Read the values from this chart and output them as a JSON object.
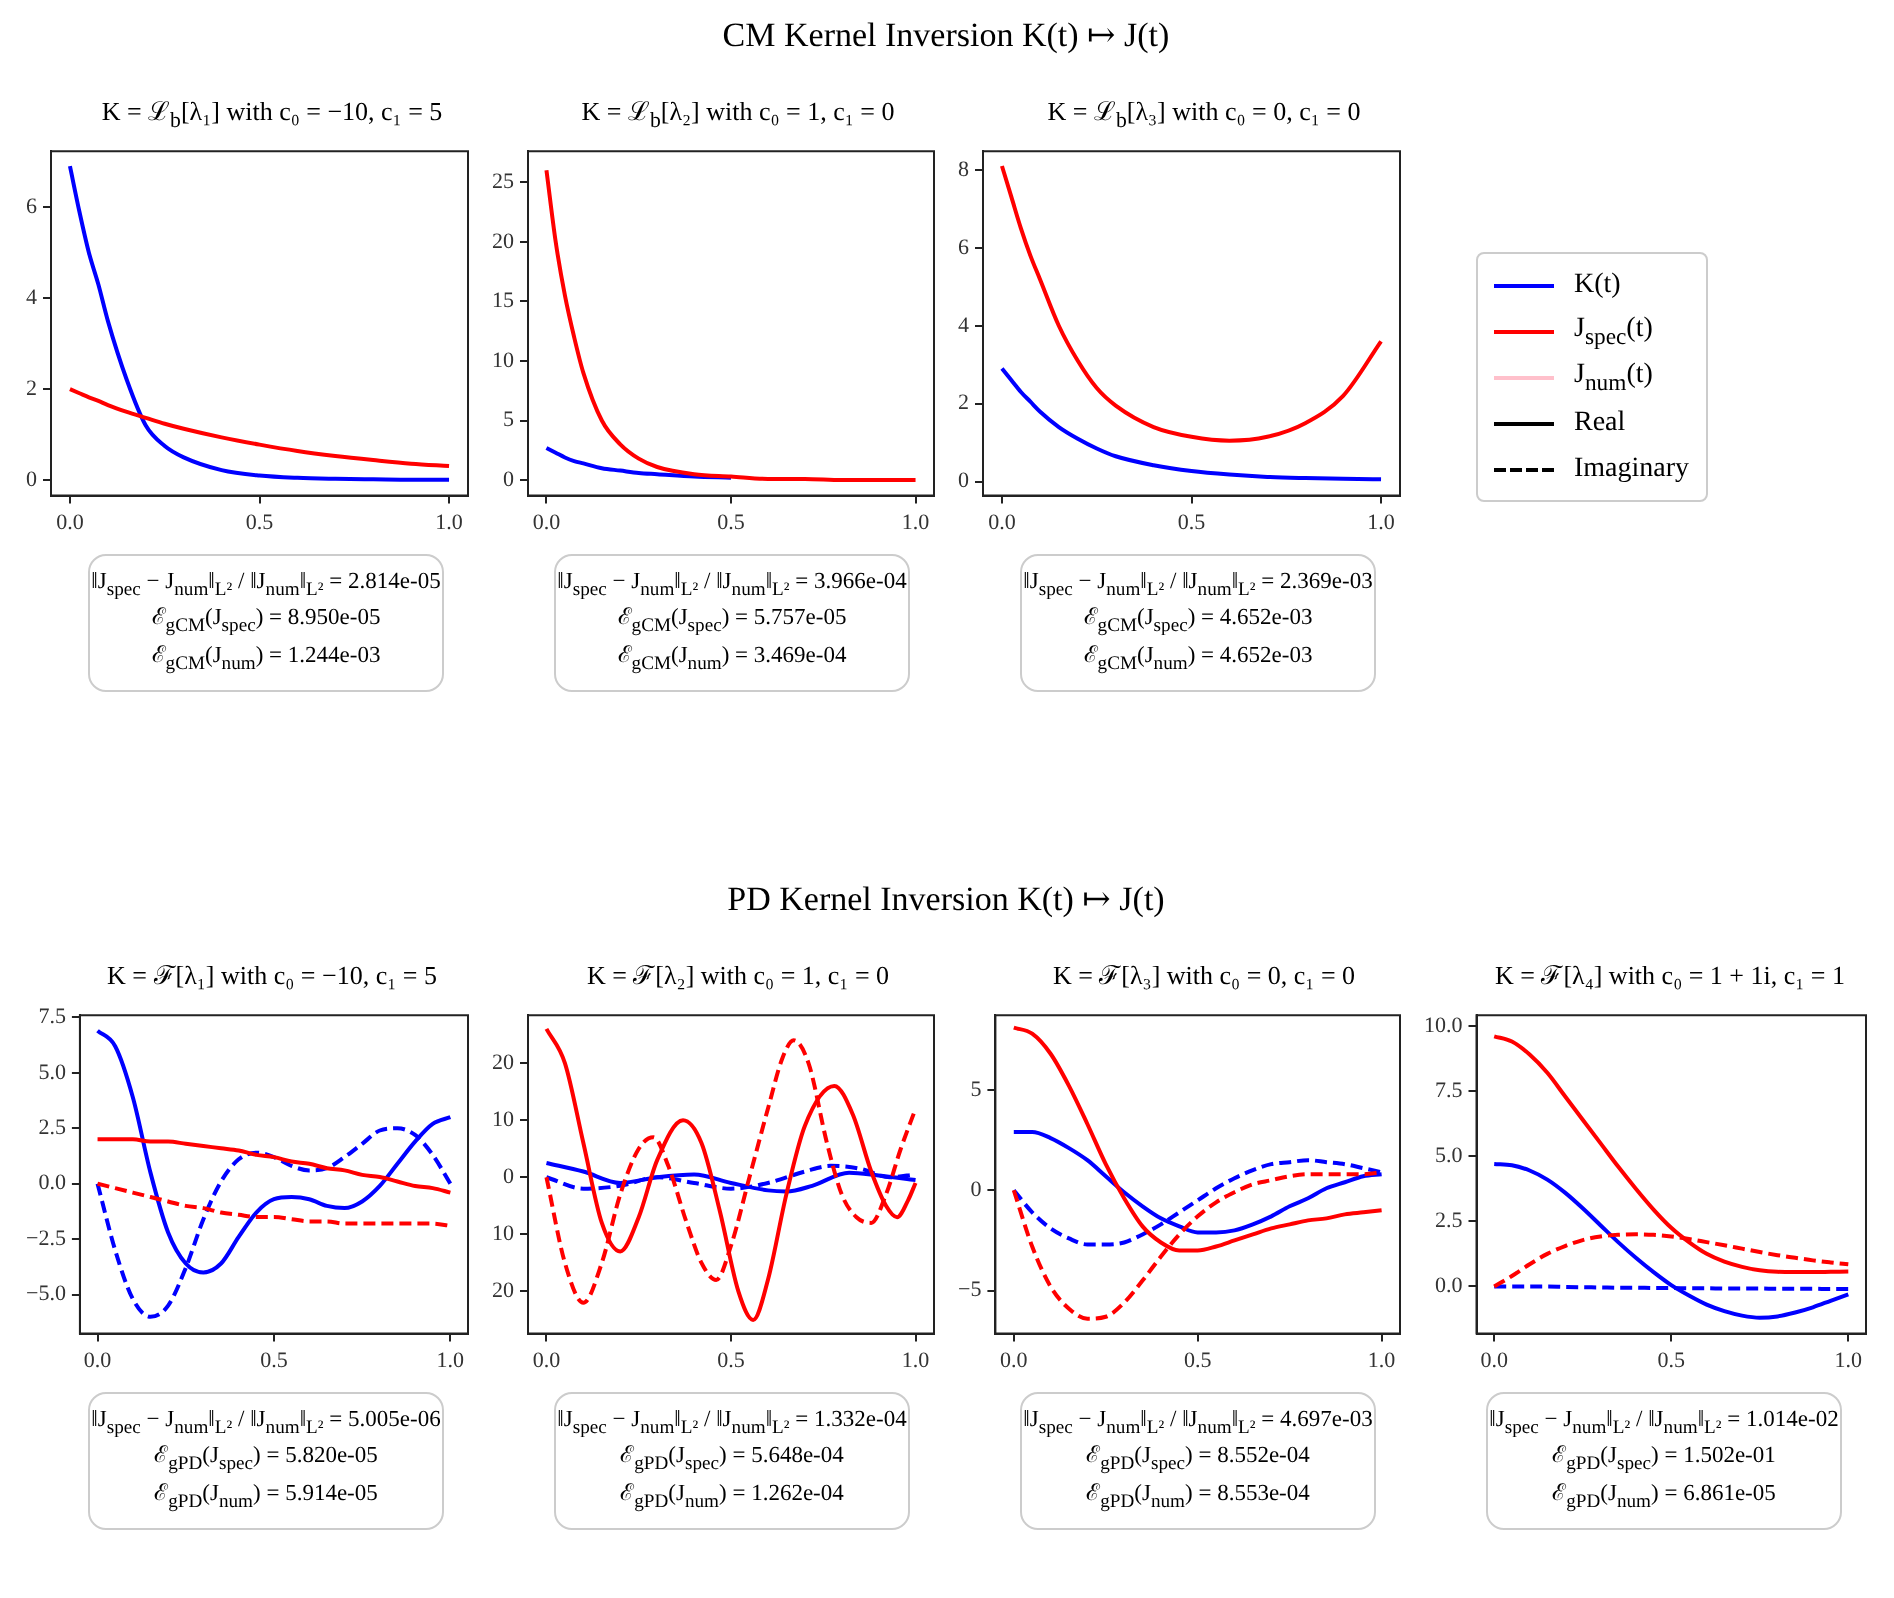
{
  "chart_data": [
    {
      "type": "other",
      "title": "CM Kernel Inversion  K(t) ↦ J(t)"
    },
    {
      "type": "line",
      "title": "K = ℒ$_{b}$[λ₁] with c₀ = −10, c₁ = 5",
      "x": [
        0,
        0.025,
        0.05,
        0.075,
        0.1,
        0.15,
        0.2,
        0.25,
        0.3,
        0.4,
        0.5,
        0.6,
        0.7,
        0.8,
        0.9,
        1
      ],
      "xlim": [
        -0.05,
        1.05
      ],
      "ylim": [
        -0.34,
        7.23
      ],
      "xticks": [
        {
          "value": 0,
          "label": "0.0"
        },
        {
          "value": 0.5,
          "label": "0.5"
        },
        {
          "value": 1,
          "label": "1.0"
        }
      ],
      "yticks": [
        0,
        2,
        4,
        6
      ],
      "series": [
        {
          "color": "#0000ff",
          "values": [
            6.9,
            5.9,
            5.0,
            4.3,
            3.5,
            2.2,
            1.2,
            0.75,
            0.5,
            0.22,
            0.1,
            0.05,
            0.03,
            0.02,
            0.01,
            0.01
          ]
        },
        {
          "color": "#ff0000",
          "values": [
            2.0,
            1.91,
            1.82,
            1.74,
            1.65,
            1.5,
            1.37,
            1.24,
            1.13,
            0.94,
            0.78,
            0.64,
            0.53,
            0.44,
            0.36,
            0.31
          ]
        }
      ],
      "annotations": [
        "‖J$_{spec}$ − J$_{num}$‖$_{L²}$ / ‖J$_{num}$‖$_{L²}$ = 2.814e-05",
        "ℰ$_{gCM}$(J$_{spec}$) = 8.950e-05",
        "ℰ$_{gCM}$(J$_{num}$) = 1.244e-03"
      ]
    },
    {
      "type": "line",
      "title": "K = ℒ$_{b}$[λ₂] with c₀ = 1, c₁ = 0",
      "x": [
        0,
        0.025,
        0.05,
        0.075,
        0.1,
        0.15,
        0.2,
        0.25,
        0.3,
        0.4,
        0.5,
        0.6,
        0.7,
        0.8,
        0.9,
        1
      ],
      "xlim": [
        -0.05,
        1.05
      ],
      "ylim": [
        -1.3,
        27.6
      ],
      "xticks": [
        {
          "value": 0,
          "label": "0.0"
        },
        {
          "value": 0.5,
          "label": "0.5"
        },
        {
          "value": 1,
          "label": "1.0"
        }
      ],
      "yticks": [
        0,
        5,
        10,
        15,
        20,
        25
      ],
      "series": [
        {
          "color": "#0000ff",
          "values": [
            2.7,
            2.3,
            1.9,
            1.6,
            1.4,
            1.0,
            0.8,
            0.6,
            0.5,
            0.3,
            0.2,
            null,
            null,
            null,
            null,
            null
          ]
        },
        {
          "color": "#ff0000",
          "values": [
            26,
            20,
            15.5,
            12,
            9,
            5,
            3,
            1.8,
            1.1,
            0.5,
            0.3,
            0.1,
            0.1,
            0,
            0,
            0
          ]
        }
      ],
      "annotations": [
        "‖J$_{spec}$ − J$_{num}$‖$_{L²}$ / ‖J$_{num}$‖$_{L²}$ = 3.966e-04",
        "ℰ$_{gCM}$(J$_{spec}$) = 5.757e-05",
        "ℰ$_{gCM}$(J$_{num}$) = 3.469e-04"
      ]
    },
    {
      "type": "line",
      "title": "K = ℒ$_{b}$[λ₃] with c₀ = 0, c₁ = 0",
      "x": [
        0,
        0.025,
        0.05,
        0.075,
        0.1,
        0.15,
        0.2,
        0.25,
        0.3,
        0.4,
        0.5,
        0.6,
        0.7,
        0.8,
        0.9,
        1
      ],
      "xlim": [
        -0.05,
        1.05
      ],
      "ylim": [
        -0.36,
        8.48
      ],
      "xticks": [
        {
          "value": 0,
          "label": "0.0"
        },
        {
          "value": 0.5,
          "label": "0.5"
        },
        {
          "value": 1,
          "label": "1.0"
        }
      ],
      "yticks": [
        0,
        2,
        4,
        6,
        8
      ],
      "legend": "right",
      "series": [
        {
          "name": "K(t)",
          "color": "#0000ff",
          "values": [
            2.9,
            2.6,
            2.3,
            2.05,
            1.8,
            1.4,
            1.1,
            0.85,
            0.65,
            0.42,
            0.27,
            0.18,
            0.12,
            0.09,
            0.07,
            0.06
          ]
        },
        {
          "name": "J$_{spec}$(t)",
          "color": "#ff0000",
          "values": [
            8.1,
            7.3,
            6.5,
            5.8,
            5.2,
            4.0,
            3.1,
            2.4,
            1.95,
            1.4,
            1.15,
            1.05,
            1.15,
            1.5,
            2.2,
            3.6
          ]
        },
        {
          "name": "J$_{num}$(t)",
          "color": "#ffc0cb",
          "values": [
            null,
            null,
            null,
            null,
            null,
            null,
            null,
            null,
            null,
            null,
            null,
            null,
            null,
            null,
            null,
            null
          ]
        },
        {
          "name": "Real",
          "color": "#000000",
          "line_style": "solid",
          "values": [
            null,
            null,
            null,
            null,
            null,
            null,
            null,
            null,
            null,
            null,
            null,
            null,
            null,
            null,
            null,
            null
          ]
        },
        {
          "name": "Imaginary",
          "color": "#000000",
          "line_style": "dashed",
          "values": [
            null,
            null,
            null,
            null,
            null,
            null,
            null,
            null,
            null,
            null,
            null,
            null,
            null,
            null,
            null,
            null
          ]
        }
      ],
      "annotations": [
        "‖J$_{spec}$ − J$_{num}$‖$_{L²}$ / ‖J$_{num}$‖$_{L²}$ = 2.369e-03",
        "ℰ$_{gCM}$(J$_{spec}$) = 4.652e-03",
        "ℰ$_{gCM}$(J$_{num}$) = 4.652e-03"
      ]
    },
    {
      "type": "other",
      "title": "PD Kernel Inversion  K(t) ↦ J(t)"
    },
    {
      "type": "line",
      "title": "K = ℱ[λ₁] with c₀ = −10, c₁ = 5",
      "x": [
        0,
        0.05,
        0.1,
        0.15,
        0.2,
        0.25,
        0.3,
        0.35,
        0.4,
        0.45,
        0.5,
        0.55,
        0.6,
        0.65,
        0.7,
        0.75,
        0.8,
        0.85,
        0.9,
        0.95,
        1
      ],
      "xlim": [
        -0.05,
        1.05
      ],
      "ylim": [
        -6.76,
        7.6
      ],
      "xticks": [
        {
          "value": 0,
          "label": "0.0"
        },
        {
          "value": 0.5,
          "label": "0.5"
        },
        {
          "value": 1,
          "label": "1.0"
        }
      ],
      "yticks": [
        {
          "value": -5,
          "label": "−5.0"
        },
        {
          "value": -2.5,
          "label": "−2.5"
        },
        {
          "value": 0,
          "label": "0.0"
        },
        {
          "value": 2.5,
          "label": "2.5"
        },
        {
          "value": 5,
          "label": "5.0"
        },
        {
          "value": 7.5,
          "label": "7.5"
        }
      ],
      "series": [
        {
          "color": "#0000ff",
          "values": [
            6.9,
            6.2,
            3.9,
            0.5,
            -2.2,
            -3.6,
            -4.0,
            -3.6,
            -2.4,
            -1.3,
            -0.7,
            -0.6,
            -0.7,
            -1.0,
            -1.1,
            -0.8,
            -0.1,
            0.9,
            1.9,
            2.7,
            3.0
          ]
        },
        {
          "color": "#0000ff",
          "line_style": "dashed",
          "values": [
            0,
            -3.0,
            -5.2,
            -6.0,
            -5.5,
            -3.8,
            -1.6,
            0.1,
            1.1,
            1.4,
            1.2,
            0.8,
            0.6,
            0.7,
            1.2,
            1.8,
            2.4,
            2.5,
            2.2,
            1.3,
            0
          ]
        },
        {
          "color": "#ff0000",
          "values": [
            2.0,
            2.0,
            2.0,
            1.9,
            1.9,
            1.8,
            1.7,
            1.6,
            1.5,
            1.3,
            1.2,
            1.0,
            0.9,
            0.7,
            0.6,
            0.4,
            0.3,
            0.1,
            -0.1,
            -0.2,
            -0.4
          ]
        },
        {
          "color": "#ff0000",
          "line_style": "dashed",
          "values": [
            0,
            -0.2,
            -0.4,
            -0.6,
            -0.8,
            -1.0,
            -1.1,
            -1.3,
            -1.4,
            -1.5,
            -1.5,
            -1.6,
            -1.7,
            -1.7,
            -1.8,
            -1.8,
            -1.8,
            -1.8,
            -1.8,
            -1.8,
            -1.9
          ]
        }
      ],
      "annotations": [
        "‖J$_{spec}$ − J$_{num}$‖$_{L²}$ / ‖J$_{num}$‖$_{L²}$ = 5.005e-06",
        "ℰ$_{gPD}$(J$_{spec}$) = 5.820e-05",
        "ℰ$_{gPD}$(J$_{num}$) = 5.914e-05"
      ]
    },
    {
      "type": "line",
      "title": "K = ℱ[λ₂] with c₀ = 1, c₁ = 0",
      "xlim": [
        -0.05,
        1.05
      ],
      "ylim": [
        -27.4,
        28.4
      ],
      "xticks": [
        {
          "value": 0,
          "label": "0.0"
        },
        {
          "value": 0.5,
          "label": "0.5"
        },
        {
          "value": 1,
          "label": "1.0"
        }
      ],
      "yticks": [
        {
          "value": -20,
          "label": "20"
        },
        {
          "value": -10,
          "label": "10"
        },
        0,
        10,
        20
      ],
      "series": [
        {
          "color": "#0000ff",
          "x": [
            0,
            0.1,
            0.2,
            0.3,
            0.4,
            0.5,
            0.6,
            0.65,
            0.72,
            0.82,
            0.9,
            1
          ],
          "values": [
            2.5,
            1,
            -1,
            0,
            0.5,
            -1,
            -2.3,
            -2.5,
            -1.5,
            0.8,
            0.3,
            -0.5
          ]
        },
        {
          "color": "#0000ff",
          "line_style": "dashed",
          "x": [
            0,
            0.1,
            0.2,
            0.3,
            0.4,
            0.5,
            0.6,
            0.7,
            0.77,
            0.85,
            0.93,
            1
          ],
          "values": [
            0,
            -2,
            -1.5,
            0,
            -1,
            -2,
            -1,
            1,
            2,
            1.5,
            0,
            0.5
          ]
        },
        {
          "color": "#ff0000",
          "x": [
            0,
            0.05,
            0.1,
            0.15,
            0.2,
            0.25,
            0.3,
            0.37,
            0.42,
            0.47,
            0.52,
            0.56,
            0.6,
            0.65,
            0.7,
            0.78,
            0.83,
            0.88,
            0.92,
            0.95,
            0.98,
            1
          ],
          "values": [
            26,
            20,
            6,
            -8,
            -13,
            -7,
            3,
            10,
            6,
            -6,
            -20,
            -25,
            -18,
            -3,
            9,
            16,
            11,
            1,
            -5,
            -7,
            -4,
            -1
          ]
        },
        {
          "color": "#ff0000",
          "line_style": "dashed",
          "x": [
            0,
            0.05,
            0.1,
            0.15,
            0.2,
            0.25,
            0.29,
            0.33,
            0.38,
            0.42,
            0.46,
            0.5,
            0.55,
            0.6,
            0.64,
            0.67,
            0.71,
            0.76,
            0.8,
            0.84,
            0.88,
            0.92,
            0.96,
            1
          ],
          "values": [
            0,
            -15,
            -22,
            -15,
            -3,
            5,
            7,
            2,
            -8,
            -15,
            -18,
            -12,
            0,
            12,
            21,
            24,
            20,
            6,
            -3,
            -7,
            -8,
            -3,
            5,
            12
          ]
        }
      ],
      "annotations": [
        "‖J$_{spec}$ − J$_{num}$‖$_{L²}$ / ‖J$_{num}$‖$_{L²}$ = 1.332e-04",
        "ℰ$_{gPD}$(J$_{spec}$) = 5.648e-04",
        "ℰ$_{gPD}$(J$_{num}$) = 1.262e-04"
      ]
    },
    {
      "type": "line",
      "title": "K = ℱ[λ₃] with c₀ = 0, c₁ = 0",
      "x": [
        0,
        0.05,
        0.1,
        0.15,
        0.2,
        0.25,
        0.3,
        0.35,
        0.4,
        0.45,
        0.5,
        0.55,
        0.6,
        0.65,
        0.7,
        0.75,
        0.8,
        0.85,
        0.9,
        0.95,
        1
      ],
      "xlim": [
        -0.05,
        1.05
      ],
      "ylim": [
        -7.14,
        8.72
      ],
      "xticks": [
        {
          "value": 0,
          "label": "0.0"
        },
        {
          "value": 0.5,
          "label": "0.5"
        },
        {
          "value": 1,
          "label": "1.0"
        }
      ],
      "yticks": [
        {
          "value": -5,
          "label": "−5"
        },
        0,
        5
      ],
      "series": [
        {
          "color": "#0000ff",
          "values": [
            2.9,
            2.9,
            2.6,
            2.1,
            1.5,
            0.7,
            -0.1,
            -0.8,
            -1.4,
            -1.8,
            -2.1,
            -2.1,
            -2.0,
            -1.7,
            -1.3,
            -0.8,
            -0.4,
            0.1,
            0.4,
            0.7,
            0.8
          ]
        },
        {
          "color": "#0000ff",
          "line_style": "dashed",
          "values": [
            0,
            -1.1,
            -1.9,
            -2.4,
            -2.7,
            -2.7,
            -2.6,
            -2.2,
            -1.7,
            -1.1,
            -0.5,
            0.1,
            0.6,
            1.0,
            1.3,
            1.4,
            1.5,
            1.4,
            1.3,
            1.1,
            0.9
          ]
        },
        {
          "color": "#ff0000",
          "values": [
            8.1,
            7.8,
            6.8,
            5.2,
            3.3,
            1.3,
            -0.4,
            -1.8,
            -2.6,
            -3.0,
            -3.0,
            -2.8,
            -2.5,
            -2.2,
            -1.9,
            -1.7,
            -1.5,
            -1.4,
            -1.2,
            -1.1,
            -1.0
          ]
        },
        {
          "color": "#ff0000",
          "line_style": "dashed",
          "values": [
            0,
            -2.8,
            -4.8,
            -5.9,
            -6.4,
            -6.3,
            -5.6,
            -4.5,
            -3.3,
            -2.2,
            -1.3,
            -0.6,
            -0.1,
            0.3,
            0.5,
            0.7,
            0.8,
            0.8,
            0.8,
            0.8,
            0.9
          ]
        }
      ],
      "annotations": [
        "‖J$_{spec}$ − J$_{num}$‖$_{L²}$ / ‖J$_{num}$‖$_{L²}$ = 4.697e-03",
        "ℰ$_{gPD}$(J$_{spec}$) = 8.552e-04",
        "ℰ$_{gPD}$(J$_{num}$) = 8.553e-04"
      ]
    },
    {
      "type": "line",
      "title": "K = ℱ[λ₄] with c₀ = 1 + 1i, c₁ = 1",
      "x": [
        0,
        0.05,
        0.1,
        0.15,
        0.2,
        0.25,
        0.3,
        0.35,
        0.4,
        0.45,
        0.5,
        0.55,
        0.6,
        0.65,
        0.7,
        0.75,
        0.8,
        0.85,
        0.9,
        0.95,
        1
      ],
      "xlim": [
        -0.05,
        1.05
      ],
      "ylim": [
        -1.81,
        10.41
      ],
      "xticks": [
        {
          "value": 0,
          "label": "0.0"
        },
        {
          "value": 0.5,
          "label": "0.5"
        },
        {
          "value": 1,
          "label": "1.0"
        }
      ],
      "yticks": [
        {
          "value": 0,
          "label": "0.0"
        },
        {
          "value": 2.5,
          "label": "2.5"
        },
        {
          "value": 5,
          "label": "5.0"
        },
        {
          "value": 7.5,
          "label": "7.5"
        },
        {
          "value": 10,
          "label": "10.0"
        }
      ],
      "series": [
        {
          "color": "#0000ff",
          "values": [
            4.7,
            4.65,
            4.45,
            4.1,
            3.6,
            3.0,
            2.35,
            1.7,
            1.1,
            0.55,
            0.05,
            -0.35,
            -0.7,
            -0.95,
            -1.12,
            -1.2,
            -1.15,
            -1.0,
            -0.8,
            -0.55,
            -0.3
          ]
        },
        {
          "color": "#0000ff",
          "line_style": "dashed",
          "values": [
            0,
            0,
            0,
            0,
            -0.02,
            -0.03,
            -0.04,
            -0.05,
            -0.05,
            -0.06,
            -0.06,
            -0.07,
            -0.07,
            -0.08,
            -0.08,
            -0.08,
            -0.09,
            -0.09,
            -0.09,
            -0.1,
            -0.1
          ]
        },
        {
          "color": "#ff0000",
          "values": [
            9.6,
            9.4,
            8.9,
            8.2,
            7.3,
            6.4,
            5.5,
            4.6,
            3.75,
            2.95,
            2.25,
            1.7,
            1.25,
            0.95,
            0.75,
            0.62,
            0.56,
            0.55,
            0.55,
            0.56,
            0.57
          ]
        },
        {
          "color": "#ff0000",
          "line_style": "dashed",
          "values": [
            0,
            0.4,
            0.85,
            1.25,
            1.55,
            1.78,
            1.92,
            1.98,
            2.0,
            1.98,
            1.92,
            1.82,
            1.7,
            1.58,
            1.45,
            1.32,
            1.2,
            1.1,
            1.0,
            0.92,
            0.85
          ]
        }
      ],
      "annotations": [
        "‖J$_{spec}$ − J$_{num}$‖$_{L²}$ / ‖J$_{num}$‖$_{L²}$ = 1.014e-02",
        "ℰ$_{gPD}$(J$_{spec}$) = 1.502e-01",
        "ℰ$_{gPD}$(J$_{num}$) = 6.861e-05"
      ]
    }
  ]
}
